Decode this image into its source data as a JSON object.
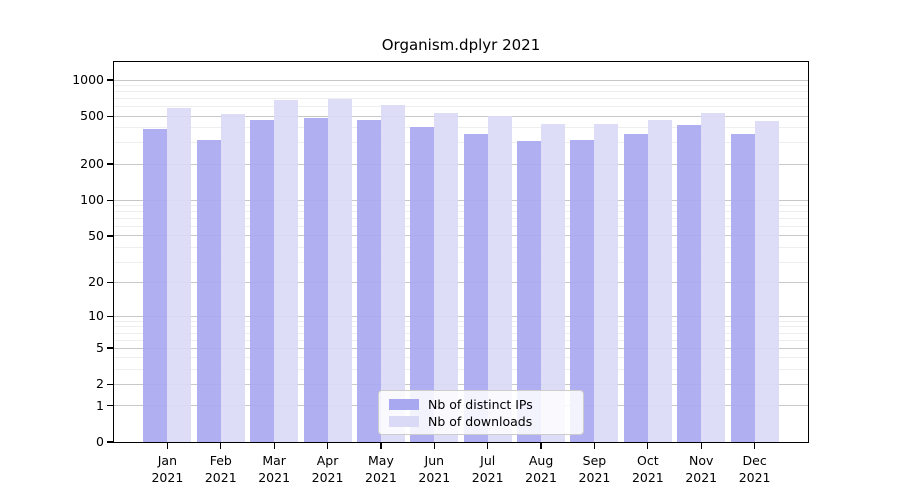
{
  "chart_data": {
    "type": "bar",
    "title": "Organism.dplyr 2021",
    "categories": [
      "Jan",
      "Feb",
      "Mar",
      "Apr",
      "May",
      "Jun",
      "Jul",
      "Aug",
      "Sep",
      "Oct",
      "Nov",
      "Dec"
    ],
    "category_year": "2021",
    "series": [
      {
        "name": "Nb of distinct IPs",
        "color": "#a8a8f0",
        "values": [
          390,
          315,
          465,
          480,
          465,
          405,
          355,
          310,
          320,
          355,
          420,
          355
        ]
      },
      {
        "name": "Nb of downloads",
        "color": "#dadaf7",
        "values": [
          590,
          520,
          685,
          690,
          615,
          535,
          505,
          430,
          435,
          470,
          530,
          455
        ]
      }
    ],
    "yscale": "log1p",
    "ylim": [
      0,
      1410
    ],
    "yticks": [
      0,
      1,
      2,
      5,
      10,
      20,
      50,
      100,
      200,
      500,
      1000
    ],
    "grid": true,
    "legend_position": "lower-center-inside",
    "colors": {
      "grid_major": "#c8c8c8",
      "grid_minor": "#eeeeee",
      "axis": "#000000",
      "legend_border": "#cccccc",
      "legend_bg": "rgba(255,255,255,0.85)"
    }
  }
}
